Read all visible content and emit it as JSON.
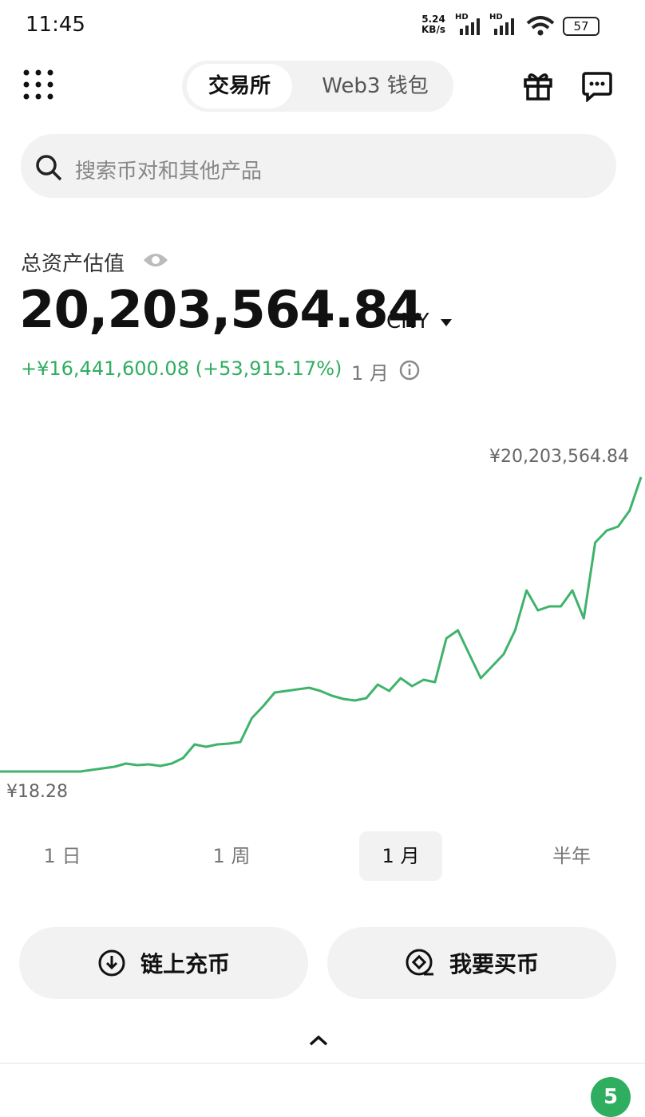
{
  "status_bar": {
    "time": "11:45",
    "net_speed": "5.24",
    "net_unit": "KB/s",
    "signal_1": "HD",
    "signal_2": "HD",
    "battery": "57"
  },
  "header": {
    "tabs": [
      "交易所",
      "Web3 钱包"
    ]
  },
  "search": {
    "placeholder": "搜索币对和其他产品"
  },
  "assets": {
    "label": "总资产估值",
    "amount": "20,203,564.84",
    "currency": "CNY",
    "change": "+¥16,441,600.08 (+53,915.17%)",
    "period": "1 月"
  },
  "chart": {
    "type": "line",
    "color": "#3fb36b",
    "max_label": "¥20,203,564.84",
    "min_label": "¥18.28",
    "ylim": [
      18.28,
      20203564.84
    ],
    "values": [
      18.28,
      18.28,
      18.28,
      18.28,
      18.28,
      18.28,
      18.28,
      18.28,
      110000,
      219000,
      329000,
      548000,
      438000,
      493000,
      383000,
      548000,
      931000,
      1862000,
      1697000,
      1862000,
      1916000,
      2026000,
      3668000,
      4490000,
      5420000,
      5530000,
      5640000,
      5749000,
      5530000,
      5201000,
      4982000,
      4873000,
      5037000,
      5968000,
      5530000,
      6406000,
      5858000,
      6296000,
      6132000,
      9144000,
      9691000,
      8049000,
      6406000,
      7227000,
      8049000,
      9691000,
      12429000,
      11060000,
      11334000,
      11334000,
      12429000,
      10512000,
      15714000,
      16535000,
      16809000,
      17904000,
      20203564.84
    ]
  },
  "periods": {
    "items": [
      "1 日",
      "1 周",
      "1 月",
      "半年"
    ],
    "selected": "1 月"
  },
  "actions": [
    "链上充币",
    "我要买币"
  ],
  "badge": "5"
}
